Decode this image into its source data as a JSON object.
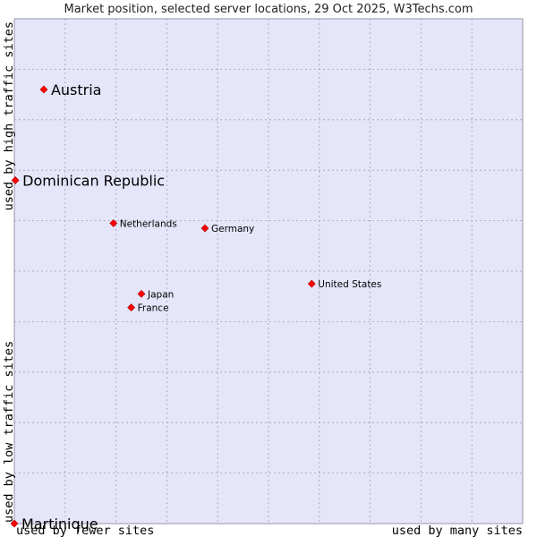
{
  "chart_data": {
    "type": "scatter",
    "title": "Market position, selected server locations, 29 Oct 2025, W3Techs.com",
    "xlabel_left": "used by fewer sites",
    "xlabel_right": "used by many sites",
    "ylabel_bottom": "used by low traffic sites",
    "ylabel_top": "used by high traffic sites",
    "xlim": [
      0,
      10
    ],
    "ylim": [
      0,
      10
    ],
    "grid": true,
    "colors": {
      "plot_bg": "#e6e6fa",
      "grid": "#a0a0b4",
      "frame": "#9696aa",
      "marker": "#ff0000",
      "marker_edge": "#aa0000"
    },
    "points": [
      {
        "label": "Austria",
        "x": 0.58,
        "y": 8.6,
        "size": "large"
      },
      {
        "label": "Dominican Republic",
        "x": 0.02,
        "y": 6.8,
        "size": "large"
      },
      {
        "label": "Netherlands",
        "x": 1.95,
        "y": 5.95,
        "size": "small"
      },
      {
        "label": "Germany",
        "x": 3.75,
        "y": 5.85,
        "size": "small"
      },
      {
        "label": "United States",
        "x": 5.85,
        "y": 4.75,
        "size": "small"
      },
      {
        "label": "Japan",
        "x": 2.5,
        "y": 4.55,
        "size": "small"
      },
      {
        "label": "France",
        "x": 2.3,
        "y": 4.28,
        "size": "small"
      }
    ],
    "points_bottom": [
      {
        "label": "Martinique",
        "x": 0.0,
        "y": 0.0,
        "size": "large"
      }
    ]
  }
}
